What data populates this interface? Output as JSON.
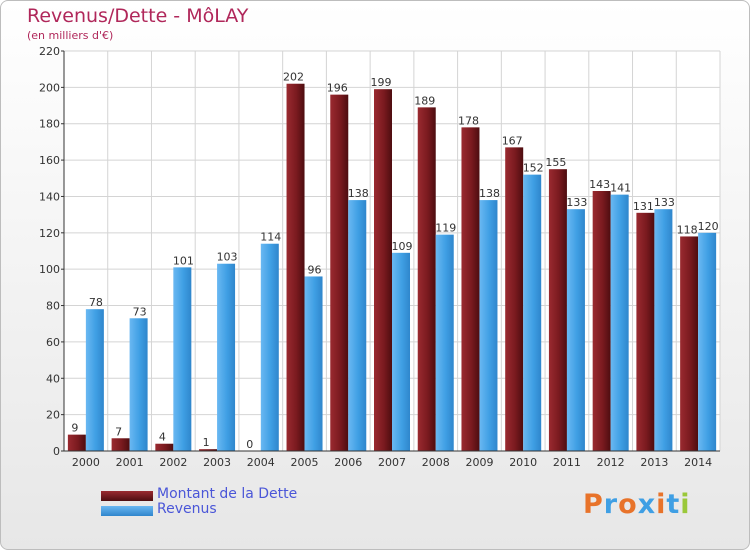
{
  "title": "Revenus/Dette - MôLAY",
  "subtitle": "(en milliers d'€)",
  "logo": "Proxiti",
  "colors": {
    "dette": "#7a1a1f",
    "revenus": "#3f9fe4",
    "title": "#b0275a",
    "legend_text": "#4a56d8"
  },
  "chart_data": {
    "type": "bar",
    "categories": [
      "2000",
      "2001",
      "2002",
      "2003",
      "2004",
      "2005",
      "2006",
      "2007",
      "2008",
      "2009",
      "2010",
      "2011",
      "2012",
      "2013",
      "2014"
    ],
    "series": [
      {
        "name": "Montant de la Dette",
        "values": [
          9,
          7,
          4,
          1,
          0,
          202,
          196,
          199,
          189,
          178,
          167,
          155,
          143,
          131,
          118
        ]
      },
      {
        "name": "Revenus",
        "values": [
          78,
          73,
          101,
          103,
          114,
          96,
          138,
          109,
          119,
          138,
          152,
          133,
          141,
          133,
          120
        ]
      }
    ],
    "ylim": [
      0,
      220
    ],
    "yticks": [
      0,
      20,
      40,
      60,
      80,
      100,
      120,
      140,
      160,
      180,
      200,
      220
    ],
    "grid": true,
    "legend": "bottom-left"
  }
}
